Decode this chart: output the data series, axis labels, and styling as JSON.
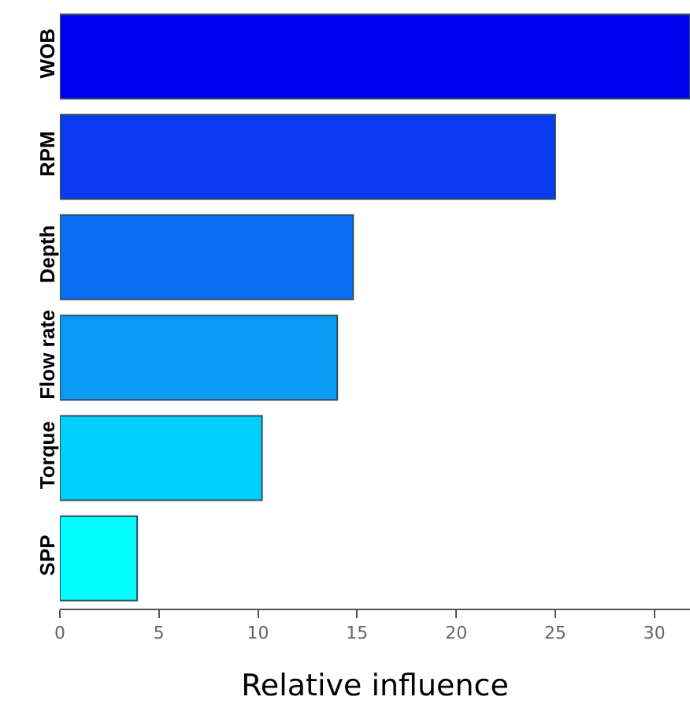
{
  "chart_data": {
    "type": "bar",
    "orientation": "horizontal",
    "xlabel": "Relative influence",
    "categories": [
      "WOB",
      "RPM",
      "Depth",
      "Flow rate",
      "Torque",
      "SPP"
    ],
    "values": [
      31.8,
      25.0,
      14.8,
      14.0,
      10.2,
      3.9
    ],
    "colors": [
      "#0000f0",
      "#0a3af0",
      "#0a6ef5",
      "#0a9af5",
      "#00d0ff",
      "#00ffff"
    ],
    "xlim": [
      0,
      31.8
    ],
    "xticks": [
      0,
      5,
      10,
      15,
      20,
      25,
      30
    ]
  }
}
